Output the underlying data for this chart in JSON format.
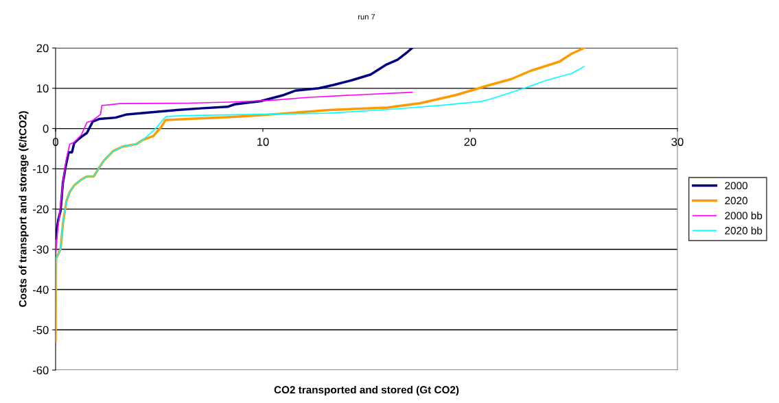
{
  "chart_data": {
    "type": "line",
    "title": "run 7",
    "xlabel": "CO2 transported and stored (Gt CO2)",
    "ylabel": "Costs of transport and storage (€/tCO2)",
    "xlim": [
      0,
      30
    ],
    "xticks": [
      0,
      10,
      20,
      30
    ],
    "ylim": [
      -60,
      20
    ],
    "yticks": [
      -60,
      -50,
      -40,
      -30,
      -20,
      -10,
      0,
      10,
      20
    ],
    "grid": "y",
    "legend": "right",
    "marker": "none",
    "line_style": "solid",
    "series": [
      {
        "name": "2000",
        "color": "#000080",
        "x": [
          0,
          0.13,
          0.24,
          0.35,
          0.48,
          0.63,
          0.79,
          0.9,
          1.07,
          1.29,
          1.51,
          1.79,
          2.12,
          2.89,
          3.44,
          4.55,
          5.87,
          6.97,
          8.3,
          8.63,
          9.9,
          11.0,
          11.56,
          12.7,
          13.4,
          14.3,
          15.2,
          15.97,
          16.5,
          17.0,
          17.2
        ],
        "values": [
          -27.3,
          -22.7,
          -20.4,
          -13.6,
          -9.6,
          -5.9,
          -5.9,
          -3.6,
          -2.8,
          -1.9,
          -1.1,
          1.7,
          2.4,
          2.7,
          3.5,
          4.0,
          4.6,
          5.0,
          5.4,
          6.0,
          6.8,
          8.3,
          9.4,
          10.0,
          10.8,
          12.0,
          13.4,
          15.9,
          17.1,
          19.1,
          20.0
        ]
      },
      {
        "name": "2020",
        "color": "#ff9900",
        "x": [
          0,
          0.02,
          0.24,
          0.35,
          0.52,
          0.68,
          0.9,
          1.24,
          1.51,
          1.84,
          2.12,
          2.34,
          2.78,
          3.22,
          3.88,
          4.22,
          4.71,
          5.1,
          5.3,
          6.4,
          8.6,
          9.9,
          13.2,
          16.0,
          17.6,
          19.3,
          20.8,
          22.0,
          22.9,
          24.3,
          24.9,
          25.5
        ],
        "values": [
          -52.8,
          -32.3,
          -30,
          -23.8,
          -18.1,
          -15.8,
          -14.1,
          -12.7,
          -11.9,
          -11.9,
          -9.6,
          -7.9,
          -5.6,
          -4.5,
          -3.9,
          -2.8,
          -1.9,
          0.4,
          2.1,
          2.4,
          2.9,
          3.3,
          4.6,
          5.2,
          6.3,
          8.3,
          10.6,
          12.3,
          14.3,
          16.6,
          18.6,
          20.0
        ]
      },
      {
        "name": "2000 bb",
        "color": "#ff00ff",
        "x": [
          0,
          0.1,
          0.22,
          0.35,
          0.5,
          0.68,
          0.9,
          1.24,
          1.51,
          1.79,
          2.17,
          2.23,
          3.11,
          6.4,
          8.6,
          10.4,
          12.1,
          14.3,
          17.2
        ],
        "values": [
          -32,
          -25,
          -20,
          -13.6,
          -8,
          -3.9,
          -3.4,
          -1.6,
          1.5,
          2.0,
          3.5,
          5.7,
          6.2,
          6.3,
          6.6,
          7.0,
          7.7,
          8.3,
          9.0
        ]
      },
      {
        "name": "2020 bb",
        "color": "#00ffff",
        "x": [
          0,
          0.02,
          0.24,
          0.35,
          0.52,
          0.68,
          0.9,
          1.24,
          1.51,
          1.84,
          2.12,
          2.34,
          2.78,
          3.22,
          3.88,
          4.22,
          4.6,
          4.9,
          5.2,
          5.35,
          6.4,
          10.4,
          13.2,
          16.5,
          18.7,
          20.5,
          20.9,
          22.6,
          23.7,
          24.9,
          25.5
        ],
        "values": [
          -52.8,
          -32.3,
          -30,
          -23.8,
          -18.1,
          -15.8,
          -14.1,
          -12.7,
          -11.9,
          -11.9,
          -9.6,
          -7.9,
          -5.6,
          -4.5,
          -3.9,
          -2.8,
          -1.1,
          0.4,
          2.3,
          3.0,
          3.2,
          3.6,
          3.8,
          4.9,
          5.8,
          6.7,
          7.2,
          10.0,
          12.0,
          13.7,
          15.4
        ]
      }
    ]
  }
}
